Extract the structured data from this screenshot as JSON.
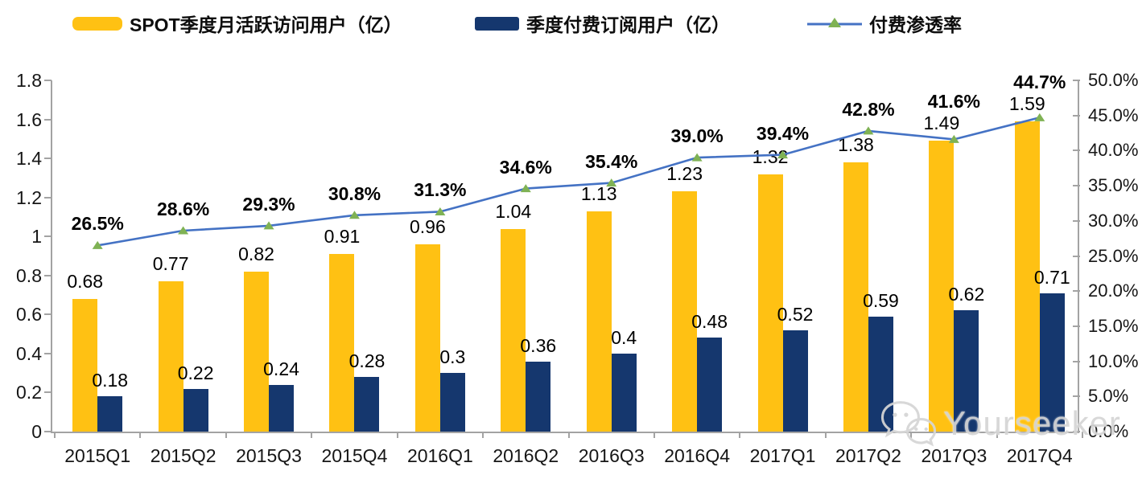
{
  "chart_data": {
    "type": "bar+line-combo",
    "title": "",
    "categories": [
      "2015Q1",
      "2015Q2",
      "2015Q3",
      "2015Q4",
      "2016Q1",
      "2016Q2",
      "2016Q3",
      "2016Q4",
      "2017Q1",
      "2017Q2",
      "2017Q3",
      "2017Q4"
    ],
    "series": [
      {
        "name": "SPOT季度月活跃访问用户（亿）",
        "type": "bar",
        "axis": "left",
        "color": "#FFC113",
        "values": [
          0.68,
          0.77,
          0.82,
          0.91,
          0.96,
          1.04,
          1.13,
          1.23,
          1.32,
          1.38,
          1.49,
          1.59
        ],
        "labels": [
          "0.68",
          "0.77",
          "0.82",
          "0.91",
          "0.96",
          "1.04",
          "1.13",
          "1.23",
          "1.32",
          "1.38",
          "1.49",
          "1.59"
        ]
      },
      {
        "name": "季度付费订阅用户（亿）",
        "type": "bar",
        "axis": "left",
        "color": "#15376E",
        "values": [
          0.18,
          0.22,
          0.24,
          0.28,
          0.3,
          0.36,
          0.4,
          0.48,
          0.52,
          0.59,
          0.62,
          0.71
        ],
        "labels": [
          "0.18",
          "0.22",
          "0.24",
          "0.28",
          "0.3",
          "0.36",
          "0.4",
          "0.48",
          "0.52",
          "0.59",
          "0.62",
          "0.71"
        ]
      },
      {
        "name": "付费渗透率",
        "type": "line",
        "axis": "right",
        "color": "#4472C4",
        "marker": "triangle",
        "marker_color": "#7FB254",
        "values": [
          26.5,
          28.6,
          29.3,
          30.8,
          31.3,
          34.6,
          35.4,
          39.0,
          39.4,
          42.8,
          41.6,
          44.7
        ],
        "labels": [
          "26.5%",
          "28.6%",
          "29.3%",
          "30.8%",
          "31.3%",
          "34.6%",
          "35.4%",
          "39.0%",
          "39.4%",
          "42.8%",
          "41.6%",
          "44.7%"
        ]
      }
    ],
    "left_axis": {
      "min": 0,
      "max": 1.8,
      "tick_labels": [
        "0",
        "0.2",
        "0.4",
        "0.6",
        "0.8",
        "1",
        "1.2",
        "1.4",
        "1.6",
        "1.8"
      ]
    },
    "right_axis": {
      "min": 0,
      "max": 50,
      "tick_labels": [
        "0.0%",
        "5.0%",
        "10.0%",
        "15.0%",
        "20.0%",
        "25.0%",
        "30.0%",
        "35.0%",
        "40.0%",
        "45.0%",
        "50.0%"
      ]
    },
    "grid": false,
    "legend_position": "top"
  },
  "legend": {
    "items": [
      {
        "label": "SPOT季度月活跃访问用户（亿）"
      },
      {
        "label": "季度付费订阅用户（亿）"
      },
      {
        "label": "付费渗透率"
      }
    ]
  },
  "watermark": {
    "text": "Yourseeker",
    "icon": "wechat-icon"
  }
}
